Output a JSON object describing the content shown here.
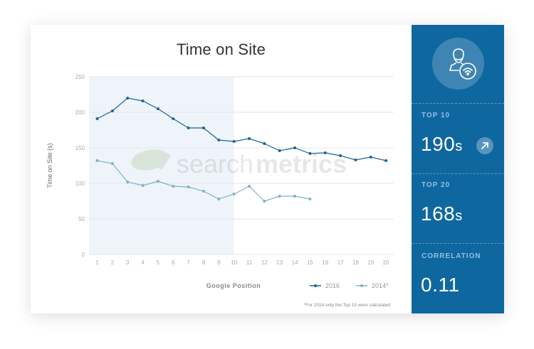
{
  "chart_data": {
    "type": "line",
    "title": "Time on Site",
    "xlabel": "Google Position",
    "ylabel": "Time on Site (s)",
    "x": [
      1,
      2,
      3,
      4,
      5,
      6,
      7,
      8,
      9,
      10,
      11,
      12,
      13,
      14,
      15,
      16,
      17,
      18,
      19,
      20
    ],
    "ylim": [
      0,
      250
    ],
    "yticks": [
      0,
      50,
      100,
      150,
      200,
      250
    ],
    "grid": true,
    "highlight_range": [
      1,
      10
    ],
    "legend_position": "bottom-right",
    "series": [
      {
        "name": "2016",
        "color": "#1a6496",
        "values": [
          191,
          202,
          220,
          216,
          205,
          191,
          178,
          178,
          161,
          159,
          163,
          156,
          146,
          150,
          142,
          143,
          139,
          133,
          137,
          132
        ]
      },
      {
        "name": "2014*",
        "color": "#7fb2c6",
        "values": [
          132,
          128,
          102,
          97,
          103,
          96,
          95,
          89,
          78,
          85,
          96,
          75,
          82,
          82,
          78
        ]
      }
    ],
    "footnote": "*For 2014 only the Top 15 were calculated",
    "watermark": "searchmetrics"
  },
  "chart": {
    "title": "Time on Site",
    "xlabel": "Google Position",
    "ylabel": "Time on Site (s)",
    "legend_2016": "2016",
    "legend_2014": "2014*",
    "footnote": "*For 2014 only the Top 15 were calculated",
    "watermark_light": "search",
    "watermark_bold": "metrics"
  },
  "side": {
    "icon": "user-wifi-icon",
    "stats": [
      {
        "label": "TOP 10",
        "value": "190",
        "unit": "s",
        "trend_icon": "arrow-up-right-icon"
      },
      {
        "label": "TOP 20",
        "value": "168",
        "unit": "s"
      },
      {
        "label": "CORRELATION",
        "value": "0.11"
      }
    ]
  },
  "colors": {
    "accent": "#0f67a0",
    "series_2016": "#1a6496",
    "series_2014": "#7fb2c6",
    "highlight": "#eef4f9"
  }
}
